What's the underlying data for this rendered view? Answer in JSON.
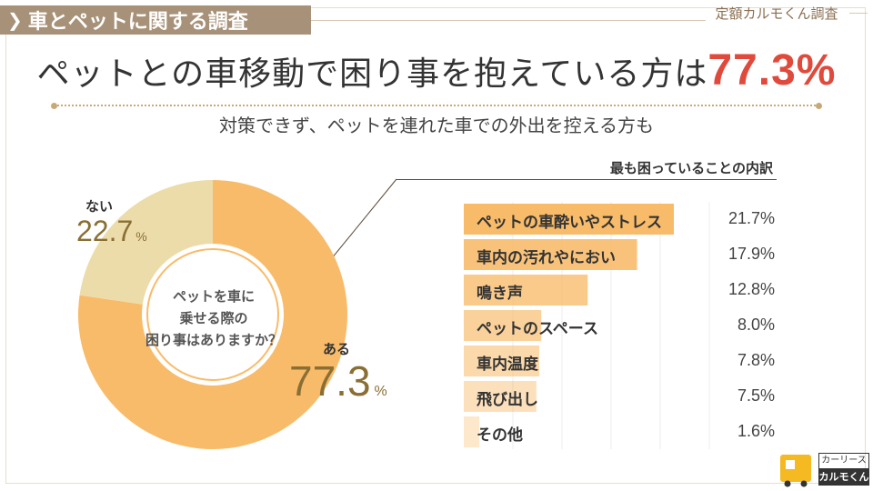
{
  "header": {
    "tag": "車とペットに関する調査",
    "brand": "定額カルモくん調査"
  },
  "headline": {
    "text": "ペットとの車移動で困り事を抱えている方は",
    "highlight": "77.3%"
  },
  "subtitle": "対策できず、ペットを連れた車での外出を控える方も",
  "colors": {
    "aru": "#f8bb6a",
    "nai": "#ecdcaa",
    "headline_accent": "#e04a3c",
    "bar": "#f8bb6a",
    "value_text": "#8a6f34"
  },
  "chart_data": [
    {
      "type": "pie",
      "title": "ペットを車に乗せる際の困り事はありますか？",
      "center_lines": [
        "ペットを車に",
        "乗せる際の",
        "困り事はありますか？"
      ],
      "slices": [
        {
          "label": "ある",
          "value": 77.3,
          "unit": "%"
        },
        {
          "label": "ない",
          "value": 22.7,
          "unit": "%"
        }
      ]
    },
    {
      "type": "bar",
      "title": "最も困っていることの内訳",
      "categories": [
        "ペットの車酔いやストレス",
        "車内の汚れやにおい",
        "鳴き声",
        "ペットのスペース",
        "車内温度",
        "飛び出し",
        "その他"
      ],
      "values": [
        21.7,
        17.9,
        12.8,
        8.0,
        7.8,
        7.5,
        1.6
      ],
      "value_labels": [
        "21.7%",
        "17.9%",
        "12.8%",
        "8.0%",
        "7.8%",
        "7.5%",
        "1.6%"
      ],
      "orientation": "horizontal"
    }
  ],
  "logo": {
    "line1": "カーリース",
    "line2": "カルモくん"
  }
}
